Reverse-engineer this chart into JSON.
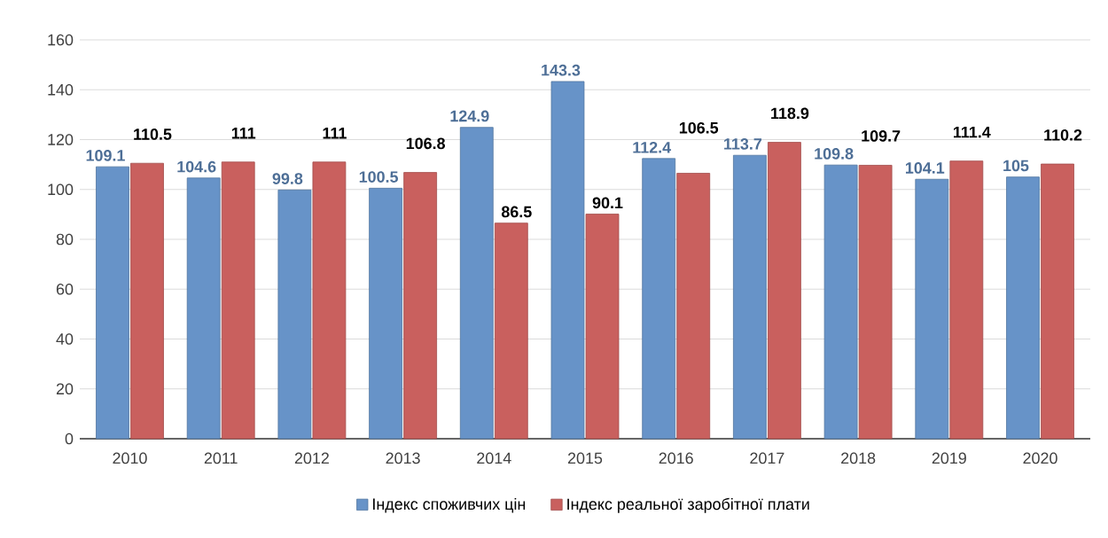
{
  "chart_data": {
    "type": "bar",
    "categories": [
      "2010",
      "2011",
      "2012",
      "2013",
      "2014",
      "2015",
      "2016",
      "2017",
      "2018",
      "2019",
      "2020"
    ],
    "series": [
      {
        "name": "Індекс споживчих цін",
        "color": "#6793c8",
        "values": [
          109.1,
          104.6,
          99.8,
          100.5,
          124.9,
          143.3,
          112.4,
          113.7,
          109.8,
          104.1,
          105
        ]
      },
      {
        "name": "Індекс реальної заробітної плати",
        "color": "#c9605e",
        "values": [
          110.5,
          111,
          111,
          106.8,
          86.5,
          90.1,
          106.5,
          118.9,
          109.7,
          111.4,
          110.2
        ]
      }
    ],
    "ylim": [
      0,
      160
    ],
    "yticks": [
      0,
      20,
      40,
      60,
      80,
      100,
      120,
      140,
      160
    ],
    "grid": "y",
    "legend": "bottom",
    "data_labels": true
  }
}
